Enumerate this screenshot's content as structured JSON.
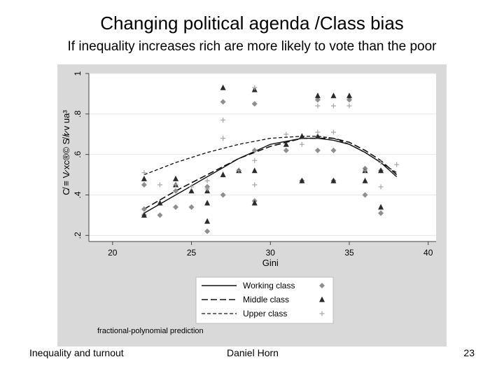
{
  "slide": {
    "title": "Changing political agenda /Class bias",
    "subtitle": "If inequality increases rich are more likely to vote than the poor",
    "footer_left": "Inequality and turnout",
    "footer_center": "Daniel Horn",
    "page_number": "23"
  },
  "colors": {
    "outer_bg": "#d9d9d9",
    "plot_bg": "#ffffff",
    "working": "#8f8f8f",
    "middle": "#2b2b2b",
    "upper": "#a6a6a6",
    "line": "#111111",
    "grid": "#e6e6e6"
  },
  "chart_data": {
    "type": "scatter",
    "xlabel": "Gini",
    "ylabel": "C̸ ≡ V̷ xc®© S̸ ̸r̷ v ua³",
    "xlim": [
      18.5,
      40.5
    ],
    "ylim": [
      0.17,
      1.0
    ],
    "x_ticks": [
      20,
      25,
      30,
      35,
      40
    ],
    "x_tick_labels": [
      "20",
      "25",
      "30",
      "35",
      "40"
    ],
    "y_ticks": [
      0.2,
      0.4,
      0.6,
      0.8,
      1.0
    ],
    "y_tick_labels": [
      ".2",
      ".4",
      ".6",
      ".8",
      "1"
    ],
    "note": "fractional-polynomial prediction",
    "legend": [
      {
        "label": "Working class",
        "line": "solid",
        "marker": "diamond"
      },
      {
        "label": "Middle class",
        "line": "longdash",
        "marker": "triangle"
      },
      {
        "label": "Upper class",
        "line": "shortdash",
        "marker": "plus"
      }
    ],
    "series": [
      {
        "name": "Working class",
        "points": [
          [
            22,
            0.45
          ],
          [
            22,
            0.33
          ],
          [
            22,
            0.3
          ],
          [
            23,
            0.3
          ],
          [
            24,
            0.42
          ],
          [
            24,
            0.34
          ],
          [
            25,
            0.34
          ],
          [
            26,
            0.44
          ],
          [
            26,
            0.22
          ],
          [
            27,
            0.86
          ],
          [
            27,
            0.4
          ],
          [
            28,
            0.52
          ],
          [
            29,
            0.85
          ],
          [
            29,
            0.37
          ],
          [
            29,
            0.62
          ],
          [
            31,
            0.62
          ],
          [
            32,
            0.47
          ],
          [
            33,
            0.87
          ],
          [
            33,
            0.62
          ],
          [
            34,
            0.62
          ],
          [
            34,
            0.47
          ],
          [
            35,
            0.87
          ],
          [
            36,
            0.4
          ],
          [
            36,
            0.53
          ],
          [
            37,
            0.31
          ],
          [
            37,
            0.52
          ]
        ]
      },
      {
        "name": "Middle class",
        "points": [
          [
            22,
            0.48
          ],
          [
            22,
            0.3
          ],
          [
            23,
            0.36
          ],
          [
            24,
            0.48
          ],
          [
            24,
            0.45
          ],
          [
            25,
            0.42
          ],
          [
            26,
            0.42
          ],
          [
            26,
            0.27
          ],
          [
            26,
            0.36
          ],
          [
            27,
            0.93
          ],
          [
            27,
            0.5
          ],
          [
            28,
            0.52
          ],
          [
            29,
            0.92
          ],
          [
            29,
            0.36
          ],
          [
            29,
            0.52
          ],
          [
            31,
            0.65
          ],
          [
            32,
            0.47
          ],
          [
            32,
            0.69
          ],
          [
            33,
            0.89
          ],
          [
            33,
            0.69
          ],
          [
            34,
            0.89
          ],
          [
            34,
            0.47
          ],
          [
            35,
            0.89
          ],
          [
            36,
            0.47
          ],
          [
            36,
            0.52
          ],
          [
            37,
            0.34
          ],
          [
            37,
            0.52
          ]
        ]
      },
      {
        "name": "Upper class",
        "points": [
          [
            22,
            0.51
          ],
          [
            23,
            0.45
          ],
          [
            24,
            0.45
          ],
          [
            25,
            0.44
          ],
          [
            26,
            0.47
          ],
          [
            26,
            0.43
          ],
          [
            27,
            0.77
          ],
          [
            27,
            0.68
          ],
          [
            28,
            0.52
          ],
          [
            29,
            0.93
          ],
          [
            29,
            0.57
          ],
          [
            29,
            0.45
          ],
          [
            31,
            0.7
          ],
          [
            32,
            0.65
          ],
          [
            33,
            0.84
          ],
          [
            33,
            0.71
          ],
          [
            34,
            0.84
          ],
          [
            34,
            0.71
          ],
          [
            35,
            0.84
          ],
          [
            36,
            0.52
          ],
          [
            37,
            0.44
          ],
          [
            37,
            0.56
          ],
          [
            38,
            0.55
          ]
        ]
      }
    ],
    "fit_lines": [
      {
        "name": "Working class",
        "x": [
          22,
          24,
          26,
          28,
          30,
          32,
          33,
          34,
          35,
          36,
          37,
          38
        ],
        "y": [
          0.31,
          0.4,
          0.49,
          0.58,
          0.65,
          0.68,
          0.68,
          0.67,
          0.65,
          0.61,
          0.56,
          0.49
        ]
      },
      {
        "name": "Middle class",
        "x": [
          22,
          24,
          26,
          28,
          30,
          32,
          33,
          34,
          35,
          36,
          37,
          38
        ],
        "y": [
          0.33,
          0.42,
          0.5,
          0.58,
          0.64,
          0.68,
          0.68,
          0.68,
          0.66,
          0.62,
          0.57,
          0.5
        ]
      },
      {
        "name": "Upper class",
        "x": [
          22,
          24,
          26,
          28,
          30,
          32,
          33,
          34,
          35,
          36,
          37,
          38
        ],
        "y": [
          0.5,
          0.56,
          0.61,
          0.65,
          0.68,
          0.69,
          0.69,
          0.68,
          0.65,
          0.61,
          0.56,
          0.51
        ]
      }
    ]
  }
}
